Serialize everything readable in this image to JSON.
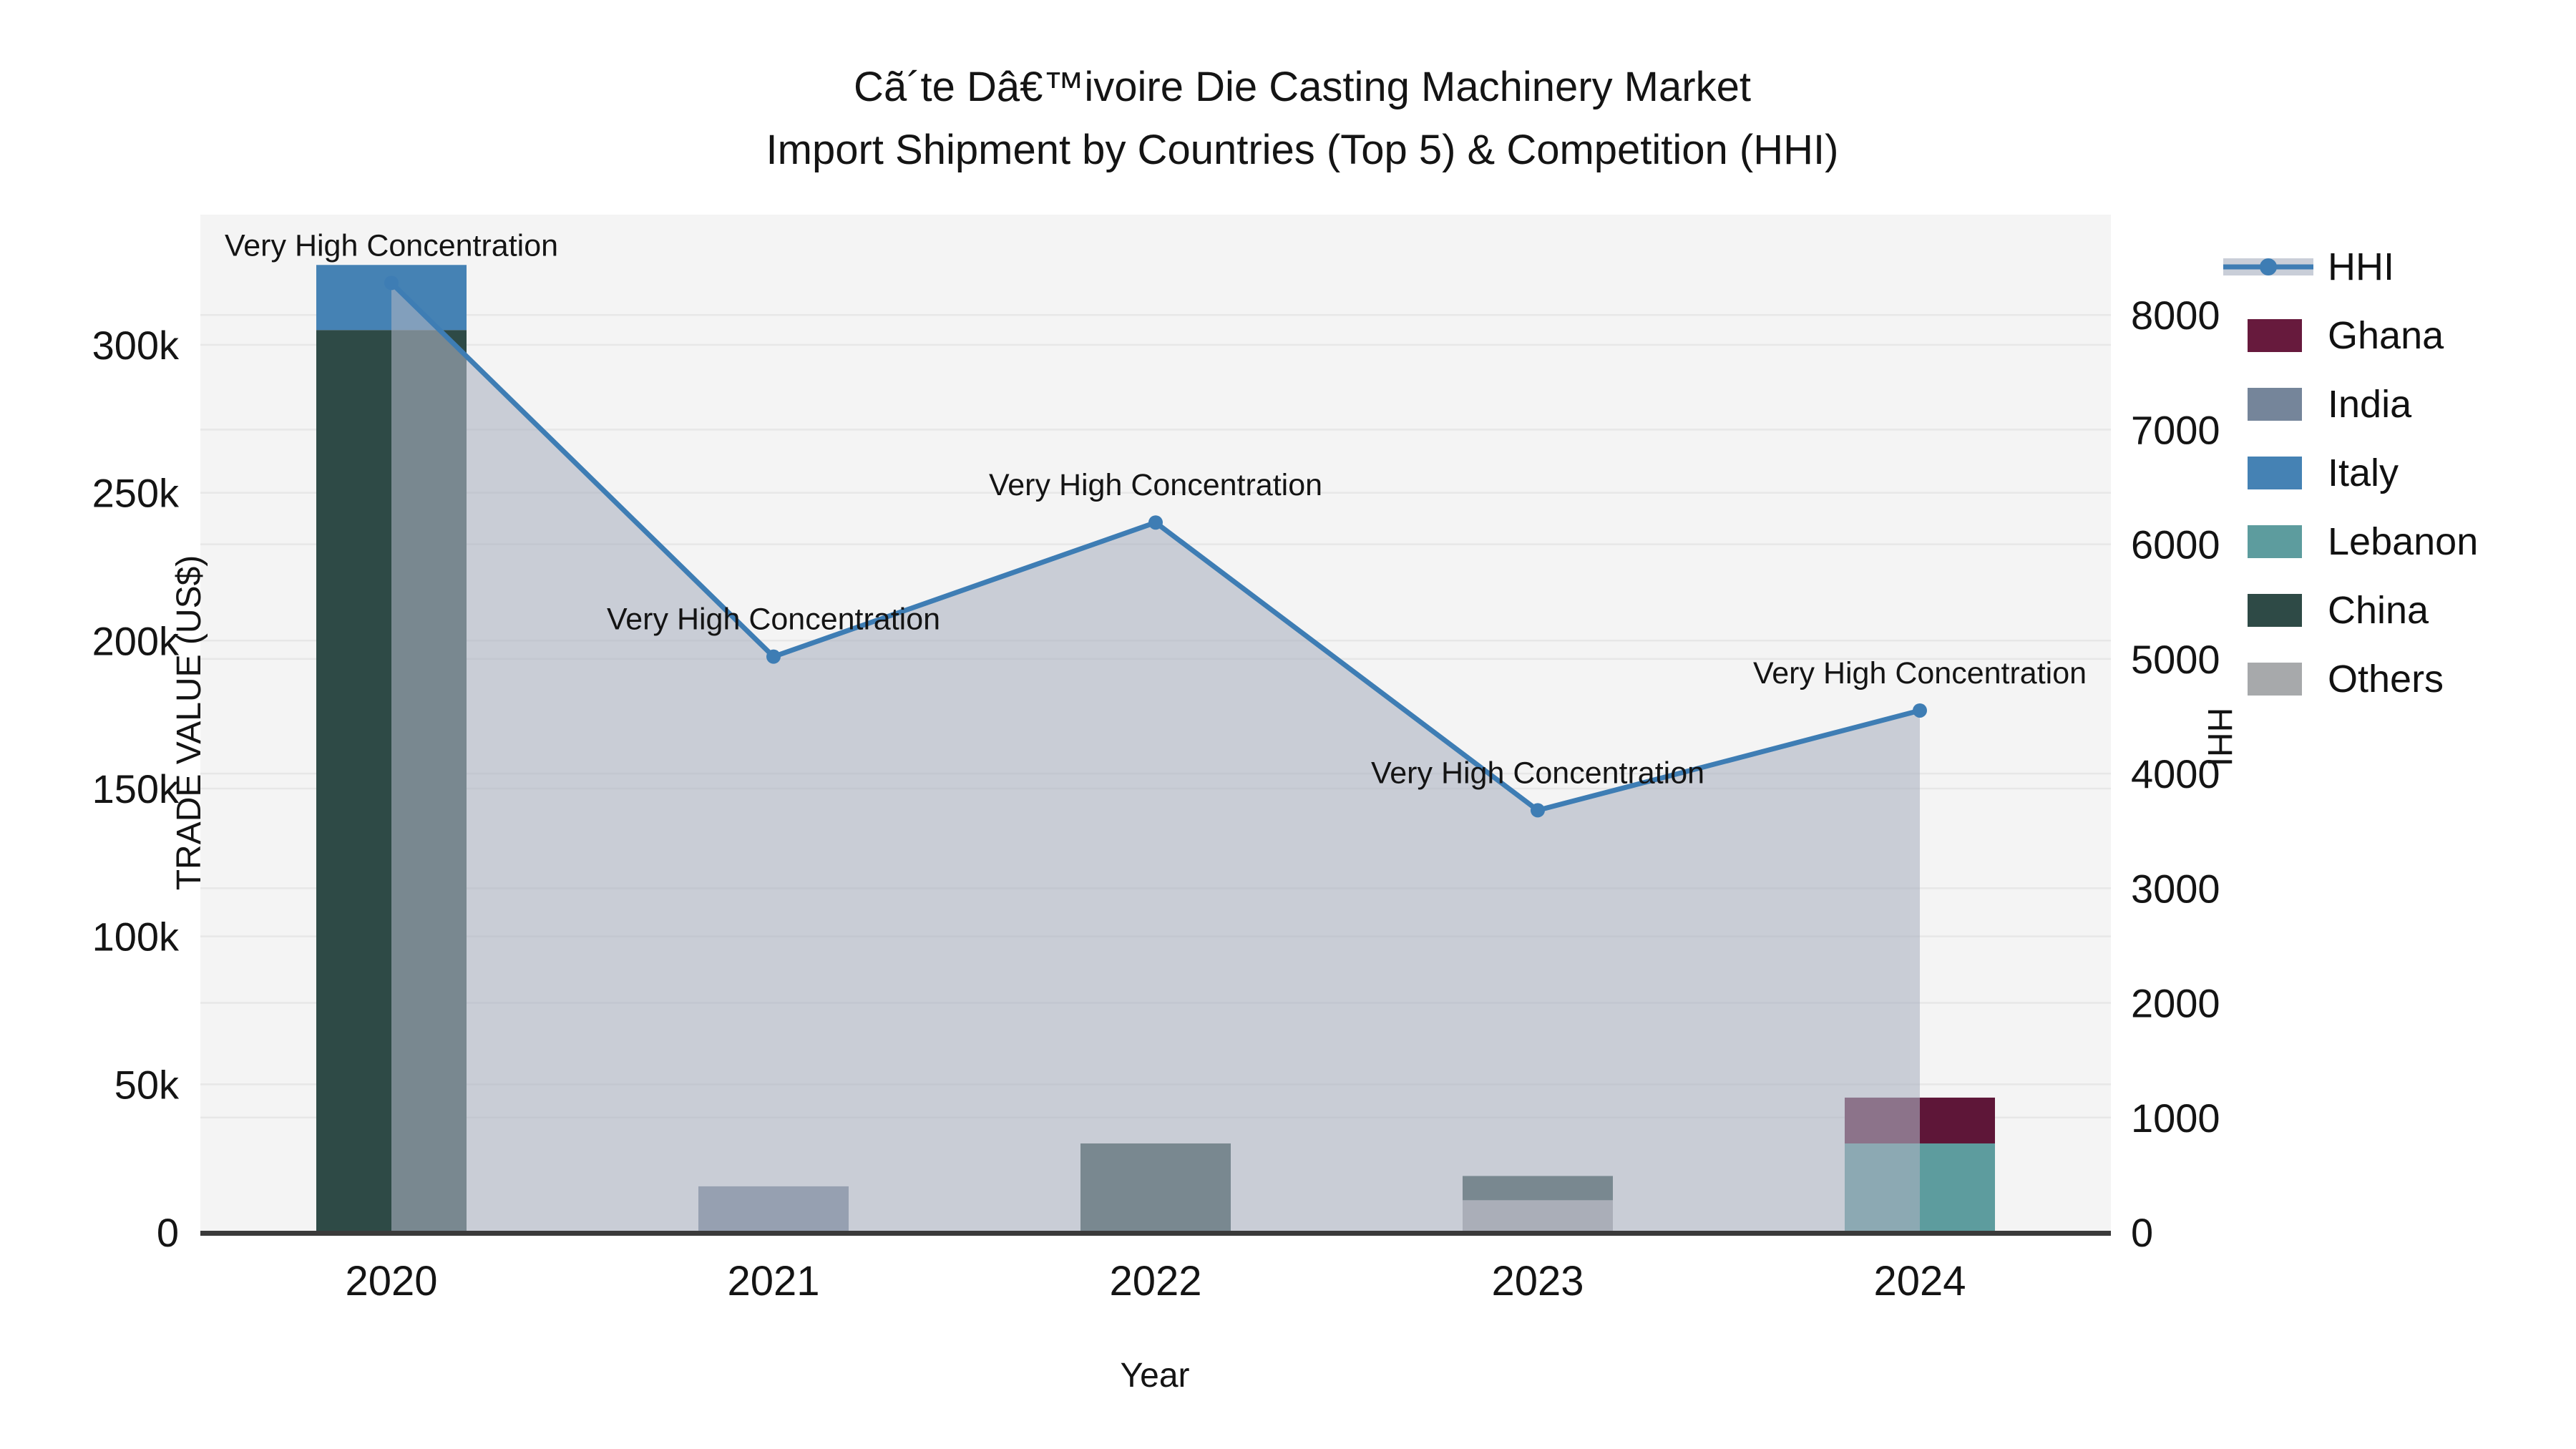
{
  "title": {
    "line1": "Cã´te Dâ€™ivoire Die Casting Machinery Market",
    "line2": "Import Shipment by Countries (Top 5) & Competition (HHI)"
  },
  "chart_data": {
    "type": "combo: stacked-bar + line(area)",
    "categories": [
      "2020",
      "2021",
      "2022",
      "2023",
      "2024"
    ],
    "xlabel": "Year",
    "ylabel_left": "TRADE VALUE (US$)",
    "ylabel_right": "HHI",
    "ylim_left": [
      0,
      344000
    ],
    "ylim_right": [
      0,
      8875
    ],
    "left_ticks": [
      {
        "v": 0,
        "label": "0"
      },
      {
        "v": 50000,
        "label": "50k"
      },
      {
        "v": 100000,
        "label": "100k"
      },
      {
        "v": 150000,
        "label": "150k"
      },
      {
        "v": 200000,
        "label": "200k"
      },
      {
        "v": 250000,
        "label": "250k"
      },
      {
        "v": 300000,
        "label": "300k"
      }
    ],
    "right_ticks": [
      {
        "v": 0,
        "label": "0"
      },
      {
        "v": 1000,
        "label": "1000"
      },
      {
        "v": 2000,
        "label": "2000"
      },
      {
        "v": 3000,
        "label": "3000"
      },
      {
        "v": 4000,
        "label": "4000"
      },
      {
        "v": 5000,
        "label": "5000"
      },
      {
        "v": 6000,
        "label": "6000"
      },
      {
        "v": 7000,
        "label": "7000"
      },
      {
        "v": 8000,
        "label": "8000"
      }
    ],
    "bars": [
      {
        "year": "2020",
        "segments": [
          {
            "country": "China",
            "value": 305000
          },
          {
            "country": "Italy",
            "value": 22000
          }
        ]
      },
      {
        "year": "2021",
        "segments": [
          {
            "country": "India",
            "value": 15500
          }
        ]
      },
      {
        "year": "2022",
        "segments": [
          {
            "country": "China",
            "value": 30000
          }
        ]
      },
      {
        "year": "2023",
        "segments": [
          {
            "country": "Others",
            "value": 10800
          },
          {
            "country": "China",
            "value": 8200
          }
        ]
      },
      {
        "year": "2024",
        "segments": [
          {
            "country": "Lebanon",
            "value": 30000
          },
          {
            "country": "Ghana",
            "value": 15500
          }
        ]
      }
    ],
    "hhi": {
      "name": "HHI",
      "points": [
        {
          "year": "2020",
          "value": 8280,
          "annotation": "Very High Concentration"
        },
        {
          "year": "2021",
          "value": 5020,
          "annotation": "Very High Concentration"
        },
        {
          "year": "2022",
          "value": 6190,
          "annotation": "Very High Concentration"
        },
        {
          "year": "2023",
          "value": 3680,
          "annotation": "Very High Concentration"
        },
        {
          "year": "2024",
          "value": 4550,
          "annotation": "Very High Concentration"
        }
      ]
    },
    "legend": [
      {
        "label": "HHI",
        "type": "line",
        "color": "#3e7db4"
      },
      {
        "label": "Ghana",
        "type": "patch",
        "color": "#671a3d"
      },
      {
        "label": "India",
        "type": "patch",
        "color": "#75859a"
      },
      {
        "label": "Italy",
        "type": "patch",
        "color": "#4582b4"
      },
      {
        "label": "Lebanon",
        "type": "patch",
        "color": "#5d9c9e"
      },
      {
        "label": "China",
        "type": "patch",
        "color": "#2e4a46"
      },
      {
        "label": "Others",
        "type": "patch",
        "color": "#a7a9ab"
      }
    ],
    "colors": {
      "China": "#2e4a46",
      "Italy": "#4582b4",
      "India": "#75859a",
      "Others": "#a7a9ab",
      "Lebanon": "#5d9c9e",
      "Ghana": "#5e1638",
      "hhi_line": "#3e7db4",
      "hhi_marker": "#3e7db4",
      "hhi_area": "rgba(172,179,194,0.6)",
      "plot_bg": "#f4f4f4",
      "grid": "#e7e7e7",
      "axis_line": "#3a3a3a",
      "text": "#141414"
    },
    "layout_hints": {
      "grid": "on (both y axes)",
      "legend_position": "right-outside-top"
    }
  }
}
